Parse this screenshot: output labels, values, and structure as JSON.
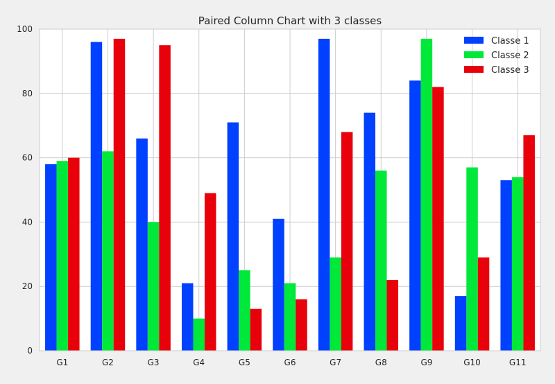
{
  "chart_data": {
    "type": "bar",
    "title": "Paired Column Chart with 3 classes",
    "xlabel": "",
    "ylabel": "",
    "categories": [
      "G1",
      "G2",
      "G3",
      "G4",
      "G5",
      "G6",
      "G7",
      "G8",
      "G9",
      "G10",
      "G11"
    ],
    "series": [
      {
        "name": "Classe 1",
        "color": "#0040ff",
        "values": [
          58,
          96,
          66,
          21,
          71,
          41,
          97,
          74,
          84,
          17,
          53
        ]
      },
      {
        "name": "Classe 2",
        "color": "#00e83a",
        "values": [
          59,
          62,
          40,
          10,
          25,
          21,
          29,
          56,
          97,
          57,
          54
        ]
      },
      {
        "name": "Classe 3",
        "color": "#e8000b",
        "values": [
          60,
          97,
          95,
          49,
          13,
          16,
          68,
          22,
          82,
          29,
          67
        ]
      }
    ],
    "ylim": [
      0,
      100
    ],
    "yticks": [
      0,
      20,
      40,
      60,
      80,
      100
    ],
    "grid": true,
    "legend_position": "top-right"
  }
}
